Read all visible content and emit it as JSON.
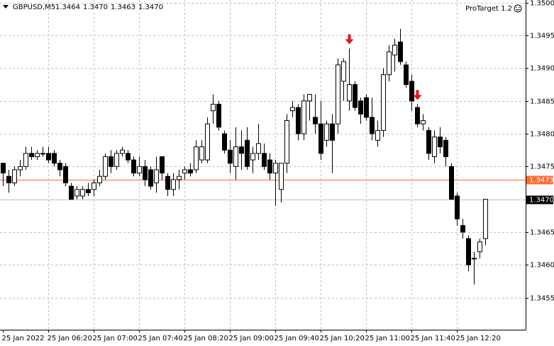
{
  "chart_data": {
    "type": "candlestick",
    "symbol": "GBPUSD,M5",
    "header_values": [
      "1.3464",
      "1.3470",
      "1.3463",
      "1.3470"
    ],
    "indicator": "ProTarget 1.2",
    "categories": [
      "25 Jan 2022",
      null,
      null,
      null,
      null,
      null,
      null,
      null,
      "25 Jan 06:20",
      null,
      null,
      null,
      null,
      null,
      null,
      null,
      "25 Jan 07:00",
      null,
      null,
      null,
      null,
      null,
      null,
      null,
      "25 Jan 07:40",
      null,
      null,
      null,
      null,
      null,
      null,
      null,
      "25 Jan 08:20",
      null,
      null,
      null,
      null,
      null,
      null,
      null,
      "25 Jan 09:00",
      null,
      null,
      null,
      null,
      null,
      null,
      null,
      "25 Jan 09:40",
      null,
      null,
      null,
      null,
      null,
      null,
      null,
      "25 Jan 10:20",
      null,
      null,
      null,
      null,
      null,
      null,
      null,
      "25 Jan 11:00",
      null,
      null,
      null,
      null,
      null,
      null,
      null,
      "25 Jan 11:40",
      null,
      null,
      null,
      null,
      null,
      null,
      null,
      "25 Jan 12:20",
      null,
      null,
      null,
      null,
      null
    ],
    "ohlc": [
      [
        1.34755,
        1.34755,
        1.3472,
        1.3474
      ],
      [
        1.34735,
        1.34745,
        1.3471,
        1.34725
      ],
      [
        1.34725,
        1.3475,
        1.3472,
        1.34745
      ],
      [
        1.34745,
        1.3476,
        1.34735,
        1.3475
      ],
      [
        1.3475,
        1.3478,
        1.34745,
        1.3477
      ],
      [
        1.3477,
        1.3478,
        1.3476,
        1.34765
      ],
      [
        1.34765,
        1.34775,
        1.3476,
        1.3477
      ],
      [
        1.3477,
        1.3478,
        1.34765,
        1.3477
      ],
      [
        1.3477,
        1.3478,
        1.34755,
        1.3476
      ],
      [
        1.3477,
        1.34775,
        1.3475,
        1.34755
      ],
      [
        1.34755,
        1.3476,
        1.34735,
        1.34745
      ],
      [
        1.3475,
        1.34755,
        1.3472,
        1.34725
      ],
      [
        1.3472,
        1.34725,
        1.347,
        1.347
      ],
      [
        1.34705,
        1.3472,
        1.347,
        1.34715
      ],
      [
        1.34705,
        1.3472,
        1.347,
        1.34715
      ],
      [
        1.34715,
        1.34725,
        1.34705,
        1.3471
      ],
      [
        1.34715,
        1.3473,
        1.34705,
        1.34725
      ],
      [
        1.34725,
        1.34745,
        1.3472,
        1.34735
      ],
      [
        1.34735,
        1.3477,
        1.3473,
        1.34765
      ],
      [
        1.34765,
        1.34775,
        1.3474,
        1.3475
      ],
      [
        1.3475,
        1.34775,
        1.34745,
        1.3477
      ],
      [
        1.3477,
        1.3478,
        1.34765,
        1.34775
      ],
      [
        1.3477,
        1.34775,
        1.34755,
        1.3476
      ],
      [
        1.3476,
        1.34765,
        1.34735,
        1.3474
      ],
      [
        1.3474,
        1.34765,
        1.34735,
        1.3475
      ],
      [
        1.3475,
        1.3476,
        1.3472,
        1.3473
      ],
      [
        1.34745,
        1.3475,
        1.34715,
        1.3472
      ],
      [
        1.34725,
        1.34765,
        1.3471,
        1.34745
      ],
      [
        1.34765,
        1.34765,
        1.3473,
        1.3474
      ],
      [
        1.34735,
        1.3474,
        1.34705,
        1.34715
      ],
      [
        1.34715,
        1.3474,
        1.34705,
        1.3473
      ],
      [
        1.3473,
        1.34745,
        1.34715,
        1.34735
      ],
      [
        1.3474,
        1.3475,
        1.3473,
        1.34745
      ],
      [
        1.34745,
        1.34755,
        1.34735,
        1.3474
      ],
      [
        1.34745,
        1.3479,
        1.3474,
        1.3478
      ],
      [
        1.3476,
        1.3479,
        1.34755,
        1.3478
      ],
      [
        1.3476,
        1.34825,
        1.34755,
        1.34815
      ],
      [
        1.34835,
        1.3486,
        1.34815,
        1.34845
      ],
      [
        1.34845,
        1.3485,
        1.34805,
        1.3481
      ],
      [
        1.348,
        1.34805,
        1.3477,
        1.34775
      ],
      [
        1.34775,
        1.3479,
        1.3474,
        1.34755
      ],
      [
        1.3475,
        1.3481,
        1.3473,
        1.3478
      ],
      [
        1.3478,
        1.34805,
        1.34745,
        1.3477
      ],
      [
        1.3479,
        1.3481,
        1.34745,
        1.3475
      ],
      [
        1.3476,
        1.3478,
        1.3474,
        1.3477
      ],
      [
        1.3477,
        1.34815,
        1.3476,
        1.34785
      ],
      [
        1.3477,
        1.34785,
        1.34745,
        1.3475
      ],
      [
        1.3476,
        1.3477,
        1.3473,
        1.3474
      ],
      [
        1.3474,
        1.3476,
        1.3469,
        1.34755
      ],
      [
        1.34715,
        1.34755,
        1.34695,
        1.34755
      ],
      [
        1.34755,
        1.3483,
        1.3474,
        1.3482
      ],
      [
        1.34835,
        1.3485,
        1.34825,
        1.3484
      ],
      [
        1.3484,
        1.34845,
        1.3479,
        1.348
      ],
      [
        1.348,
        1.3486,
        1.3479,
        1.3485
      ],
      [
        1.3485,
        1.3486,
        1.3482,
        1.3486
      ],
      [
        1.34825,
        1.3486,
        1.348,
        1.34815
      ],
      [
        1.34815,
        1.3485,
        1.3476,
        1.3477
      ],
      [
        1.3479,
        1.3482,
        1.3478,
        1.34815
      ],
      [
        1.34815,
        1.3483,
        1.3474,
        1.3479
      ],
      [
        1.34815,
        1.34915,
        1.348,
        1.34905
      ],
      [
        1.3488,
        1.34915,
        1.3485,
        1.3491
      ],
      [
        1.3485,
        1.3493,
        1.34835,
        1.34875
      ],
      [
        1.34875,
        1.3488,
        1.34835,
        1.3484
      ],
      [
        1.3485,
        1.34855,
        1.34815,
        1.3483
      ],
      [
        1.34855,
        1.3486,
        1.3482,
        1.34825
      ],
      [
        1.34825,
        1.34855,
        1.3479,
        1.348
      ],
      [
        1.3479,
        1.3482,
        1.3478,
        1.34805
      ],
      [
        1.34805,
        1.349,
        1.34795,
        1.3489
      ],
      [
        1.3489,
        1.34935,
        1.3488,
        1.34925
      ],
      [
        1.3492,
        1.34945,
        1.34895,
        1.34935
      ],
      [
        1.3494,
        1.3496,
        1.34905,
        1.3491
      ],
      [
        1.34905,
        1.3491,
        1.3487,
        1.34875
      ],
      [
        1.3488,
        1.3489,
        1.34835,
        1.3485
      ],
      [
        1.3484,
        1.34845,
        1.3481,
        1.34815
      ],
      [
        1.34815,
        1.3483,
        1.34805,
        1.3482
      ],
      [
        1.34805,
        1.3481,
        1.3476,
        1.3477
      ],
      [
        1.34765,
        1.34805,
        1.34755,
        1.34795
      ],
      [
        1.34795,
        1.3481,
        1.3477,
        1.3478
      ],
      [
        1.3479,
        1.34795,
        1.3475,
        1.34765
      ],
      [
        1.3475,
        1.34755,
        1.347,
        1.347
      ],
      [
        1.34705,
        1.3471,
        1.3466,
        1.3467
      ],
      [
        1.3466,
        1.3467,
        1.3464,
        1.3465
      ],
      [
        1.3464,
        1.34645,
        1.3459,
        1.346
      ],
      [
        1.3461,
        1.3462,
        1.3457,
        1.3461
      ],
      [
        1.3462,
        1.3464,
        1.3461,
        1.34635
      ],
      [
        1.3464,
        1.347,
        1.3463,
        1.347
      ]
    ],
    "arrows": [
      61,
      73
    ],
    "arrow_color": "#e8141b",
    "levels": [
      {
        "value": 1.3473,
        "label": "1.3473",
        "color": "#ff6a2b"
      },
      {
        "value": 1.347,
        "label": "1.3470",
        "color": "#c0c0c0"
      }
    ],
    "ylim": [
      1.34501,
      1.35004
    ],
    "yticks": [
      {
        "value": 1.35,
        "label": "1.3500"
      },
      {
        "value": 1.3495,
        "label": "1.3495"
      },
      {
        "value": 1.349,
        "label": "1.3490"
      },
      {
        "value": 1.3485,
        "label": "1.3485"
      },
      {
        "value": 1.348,
        "label": "1.3480"
      },
      {
        "value": 1.3475,
        "label": "1.3475"
      },
      {
        "value": 1.347,
        "label": "1.3470"
      },
      {
        "value": 1.3465,
        "label": "1.3465"
      },
      {
        "value": 1.346,
        "label": "1.3460"
      },
      {
        "value": 1.3455,
        "label": "1.3455"
      }
    ],
    "grid": true
  }
}
